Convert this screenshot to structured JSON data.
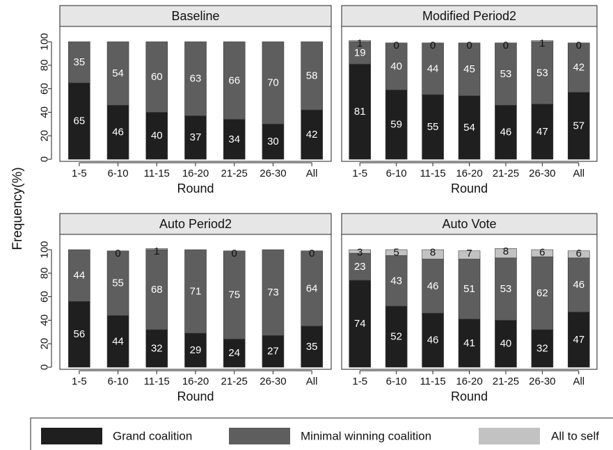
{
  "figure": {
    "ylabel": "Frequency(%)"
  },
  "chart_data": {
    "type": "bar",
    "stacked": true,
    "categories": [
      "1-5",
      "6-10",
      "11-15",
      "16-20",
      "21-25",
      "26-30",
      "All"
    ],
    "xlabel": "Round",
    "ylim": [
      0,
      100
    ],
    "yticks": [
      0,
      20,
      40,
      60,
      80,
      100
    ],
    "grid": false,
    "legend_position": "bottom",
    "colors": {
      "grand": "#1f1f1f",
      "minimal": "#5e5e5e",
      "self": "#c2c2c2",
      "panel_header": "#e6e6e6"
    },
    "legend": [
      {
        "key": "grand",
        "label": "Grand coalition"
      },
      {
        "key": "minimal",
        "label": "Minimal winning coalition"
      },
      {
        "key": "self",
        "label": "All to self"
      }
    ],
    "panels": [
      {
        "title": "Baseline",
        "series": [
          {
            "key": "grand",
            "values": [
              65,
              46,
              40,
              37,
              34,
              30,
              42
            ]
          },
          {
            "key": "minimal",
            "values": [
              35,
              54,
              60,
              63,
              66,
              70,
              58
            ]
          },
          {
            "key": "self",
            "values": [
              null,
              null,
              null,
              null,
              null,
              null,
              null
            ]
          }
        ]
      },
      {
        "title": "Modified Period2",
        "series": [
          {
            "key": "grand",
            "values": [
              81,
              59,
              55,
              54,
              46,
              47,
              57
            ]
          },
          {
            "key": "minimal",
            "values": [
              19,
              40,
              44,
              45,
              53,
              53,
              42
            ]
          },
          {
            "key": "self",
            "values": [
              1,
              0,
              0,
              0,
              0,
              1,
              0
            ]
          }
        ]
      },
      {
        "title": "Auto Period2",
        "series": [
          {
            "key": "grand",
            "values": [
              56,
              44,
              32,
              29,
              24,
              27,
              35
            ]
          },
          {
            "key": "minimal",
            "values": [
              44,
              55,
              68,
              71,
              75,
              73,
              64
            ]
          },
          {
            "key": "self",
            "values": [
              null,
              0,
              1,
              null,
              0,
              null,
              0
            ]
          }
        ]
      },
      {
        "title": "Auto Vote",
        "series": [
          {
            "key": "grand",
            "values": [
              74,
              52,
              46,
              41,
              40,
              32,
              47
            ]
          },
          {
            "key": "minimal",
            "values": [
              23,
              43,
              46,
              51,
              53,
              62,
              46
            ]
          },
          {
            "key": "self",
            "values": [
              3,
              5,
              8,
              7,
              8,
              6,
              6
            ]
          }
        ]
      }
    ]
  }
}
